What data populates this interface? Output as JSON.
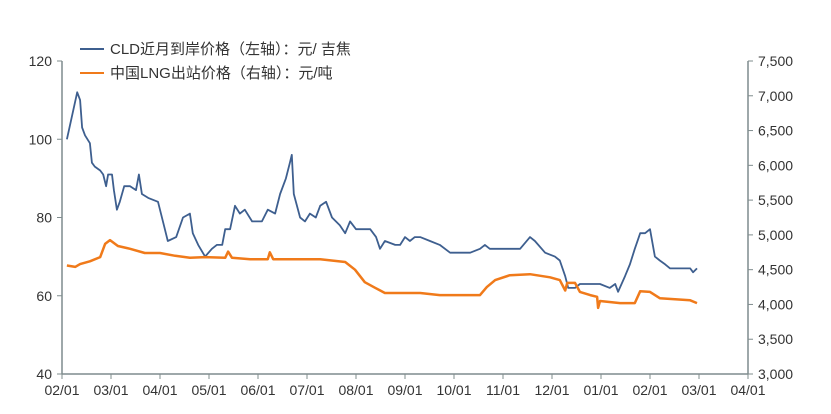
{
  "chart_data": {
    "type": "line",
    "title": "",
    "x_unit": "months since 02/01",
    "x_ticks": [
      "02/01",
      "03/01",
      "04/01",
      "05/01",
      "06/01",
      "07/01",
      "08/01",
      "09/01",
      "10/01",
      "11/01",
      "12/01",
      "01/01",
      "02/01",
      "03/01",
      "04/01"
    ],
    "xlim": [
      0,
      14
    ],
    "y_left": {
      "ylim": [
        40,
        120
      ],
      "ticks": [
        "40",
        "60",
        "80",
        "100",
        "120"
      ]
    },
    "y_right": {
      "ylim": [
        3000,
        7500
      ],
      "ticks": [
        "3,000",
        "3,500",
        "4,000",
        "4,500",
        "5,000",
        "5,500",
        "6,000",
        "6,500",
        "7,000",
        "7,500"
      ]
    },
    "legend_position": "top-left",
    "series": [
      {
        "name": "CLD近月到岸价格（左轴）：元/ 吉焦",
        "axis": "left",
        "color": "#3e5f8f",
        "x": [
          0.1,
          0.31,
          0.37,
          0.41,
          0.47,
          0.57,
          0.61,
          0.67,
          0.78,
          0.84,
          0.9,
          0.94,
          1.02,
          1.06,
          1.12,
          1.18,
          1.27,
          1.39,
          1.51,
          1.57,
          1.63,
          1.76,
          1.96,
          2.08,
          2.16,
          2.33,
          2.47,
          2.61,
          2.67,
          2.78,
          2.92,
          3.06,
          3.16,
          3.27,
          3.33,
          3.43,
          3.53,
          3.63,
          3.73,
          3.88,
          4.08,
          4.2,
          4.35,
          4.45,
          4.57,
          4.65,
          4.69,
          4.73,
          4.86,
          4.96,
          5.06,
          5.18,
          5.27,
          5.39,
          5.51,
          5.67,
          5.78,
          5.88,
          6.0,
          6.29,
          6.41,
          6.49,
          6.59,
          6.8,
          6.9,
          7.0,
          7.1,
          7.2,
          7.31,
          7.51,
          7.71,
          7.92,
          8.12,
          8.33,
          8.53,
          8.63,
          8.73,
          8.94,
          9.35,
          9.55,
          9.65,
          9.86,
          10.06,
          10.16,
          10.27,
          10.33,
          10.47,
          10.57,
          10.78,
          10.98,
          11.18,
          11.29,
          11.35,
          11.49,
          11.59,
          11.69,
          11.8,
          11.9,
          12.0,
          12.1,
          12.2,
          12.31,
          12.41,
          12.82,
          12.88,
          12.96
        ],
        "values": [
          100,
          112,
          110,
          103,
          101,
          99,
          94,
          93,
          92,
          91,
          88,
          91,
          91,
          87,
          82,
          84,
          88,
          88,
          87,
          91,
          86,
          85,
          84,
          78,
          74,
          75,
          80,
          81,
          76,
          73,
          70,
          72,
          73,
          73,
          77,
          77,
          83,
          81,
          82,
          79,
          79,
          82,
          81,
          86,
          90,
          94,
          96,
          86,
          80,
          79,
          81,
          80,
          83,
          84,
          80,
          78,
          76,
          79,
          77,
          77,
          75,
          72,
          74,
          73,
          73,
          75,
          74,
          75,
          75,
          74,
          73,
          71,
          71,
          71,
          72,
          73,
          72,
          72,
          72,
          75,
          74,
          71,
          70,
          69,
          65,
          62,
          62,
          63,
          63,
          63,
          62,
          63,
          61,
          65,
          68,
          72,
          76,
          76,
          77,
          70,
          69,
          68,
          67,
          67,
          66,
          67
        ]
      },
      {
        "name": "中国LNG出站价格（右轴）：元/吨",
        "axis": "right",
        "color": "#f07a1a",
        "x": [
          0.1,
          0.27,
          0.37,
          0.57,
          0.78,
          0.88,
          0.98,
          1.14,
          1.39,
          1.69,
          2.0,
          2.31,
          2.61,
          2.92,
          3.33,
          3.39,
          3.47,
          3.84,
          4.2,
          4.24,
          4.31,
          4.86,
          5.27,
          5.78,
          5.98,
          6.18,
          6.39,
          6.59,
          6.9,
          7.31,
          7.71,
          8.53,
          8.67,
          8.84,
          9.14,
          9.55,
          9.96,
          10.16,
          10.27,
          10.31,
          10.47,
          10.57,
          10.78,
          10.92,
          10.94,
          10.98,
          11.39,
          11.69,
          11.8,
          12.0,
          12.2,
          12.82,
          12.96
        ],
        "values": [
          4560,
          4540,
          4580,
          4620,
          4680,
          4870,
          4925,
          4840,
          4800,
          4740,
          4740,
          4700,
          4670,
          4680,
          4670,
          4760,
          4670,
          4650,
          4650,
          4750,
          4650,
          4650,
          4650,
          4610,
          4500,
          4320,
          4240,
          4165,
          4165,
          4165,
          4135,
          4135,
          4250,
          4350,
          4420,
          4435,
          4390,
          4350,
          4200,
          4310,
          4310,
          4180,
          4135,
          4110,
          3950,
          4050,
          4020,
          4020,
          4190,
          4180,
          4090,
          4060,
          4020
        ]
      }
    ]
  }
}
